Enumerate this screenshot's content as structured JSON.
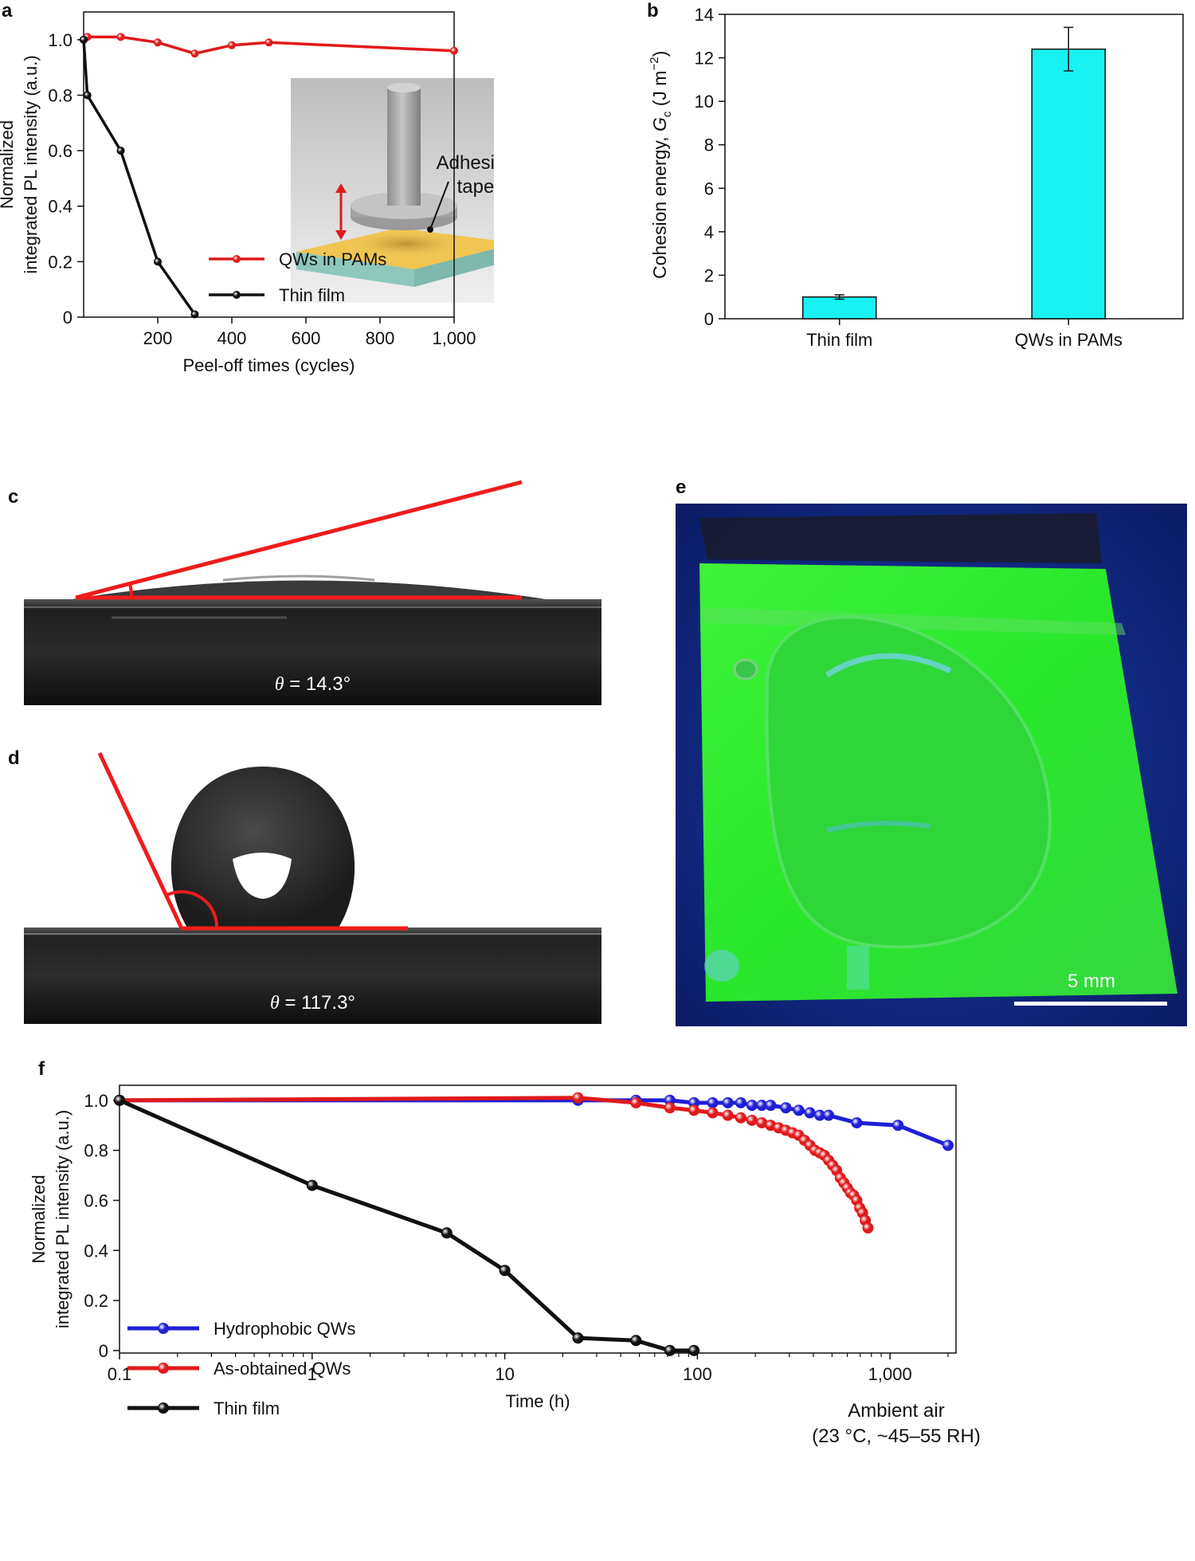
{
  "panel_labels": {
    "a": "a",
    "b": "b",
    "c": "c",
    "d": "d",
    "e": "e",
    "f": "f"
  },
  "panel_c": {
    "caption_symbol": "θ",
    "caption_value": " = 14.3°"
  },
  "panel_d": {
    "caption_symbol": "θ",
    "caption_value": " = 117.3°"
  },
  "panel_e": {
    "scale_bar": "5 mm"
  },
  "chart_data": [
    {
      "id": "a",
      "type": "line",
      "xlabel": "Peel-off times (cycles)",
      "ylabel_line1": "Normalized",
      "ylabel_line2": "integrated PL intensity (a.u.)",
      "xlim": [
        0,
        1000
      ],
      "ylim": [
        0,
        1.1
      ],
      "xticks": [
        {
          "v": 200,
          "label": "200"
        },
        {
          "v": 400,
          "label": "400"
        },
        {
          "v": 600,
          "label": "600"
        },
        {
          "v": 800,
          "label": "800"
        },
        {
          "v": 1000,
          "label": "1,000"
        }
      ],
      "yticks": [
        {
          "v": 0,
          "label": "0"
        },
        {
          "v": 0.2,
          "label": "0.2"
        },
        {
          "v": 0.4,
          "label": "0.4"
        },
        {
          "v": 0.6,
          "label": "0.6"
        },
        {
          "v": 0.8,
          "label": "0.8"
        },
        {
          "v": 1.0,
          "label": "1.0"
        }
      ],
      "series": [
        {
          "name": "QWs in PAMs",
          "color": "#e0191b",
          "x": [
            0,
            10,
            100,
            200,
            300,
            400,
            500,
            1000
          ],
          "y": [
            1.0,
            1.01,
            1.01,
            0.99,
            0.95,
            0.98,
            0.99,
            0.96
          ]
        },
        {
          "name": "Thin film",
          "color": "#111111",
          "x": [
            0,
            10,
            100,
            200,
            300
          ],
          "y": [
            1.0,
            0.8,
            0.6,
            0.2,
            0.01
          ]
        }
      ],
      "inset_label_line1": "Adhesive",
      "inset_label_line2": "tape"
    },
    {
      "id": "b",
      "type": "bar",
      "ylabel": "Cohesion energy, ",
      "ylabel_symbol": "G",
      "ylabel_sub": "c",
      "ylabel_unit": " (J m",
      "ylabel_sup": "−2",
      "ylabel_end": ")",
      "ylim": [
        0,
        14
      ],
      "yticks": [
        {
          "v": 0,
          "label": "0"
        },
        {
          "v": 2,
          "label": "2"
        },
        {
          "v": 4,
          "label": "4"
        },
        {
          "v": 6,
          "label": "6"
        },
        {
          "v": 8,
          "label": "8"
        },
        {
          "v": 10,
          "label": "10"
        },
        {
          "v": 12,
          "label": "12"
        },
        {
          "v": 14,
          "label": "14"
        }
      ],
      "categories": [
        "Thin film",
        "QWs in PAMs"
      ],
      "values": [
        1.0,
        12.4
      ],
      "errors": [
        0.1,
        1.0
      ],
      "bar_color": "#18f2f2"
    },
    {
      "id": "f",
      "type": "line",
      "xscale": "log",
      "xlabel": "Time (h)",
      "ylabel_line1": "Normalized",
      "ylabel_line2": "integrated PL intensity (a.u.)",
      "xlim": [
        0.1,
        2200
      ],
      "ylim": [
        -0.01,
        1.06
      ],
      "xticks": [
        {
          "v": 0.1,
          "label": "0.1"
        },
        {
          "v": 1,
          "label": "1"
        },
        {
          "v": 10,
          "label": "10"
        },
        {
          "v": 100,
          "label": "100"
        },
        {
          "v": 1000,
          "label": "1,000"
        }
      ],
      "yticks": [
        {
          "v": 0,
          "label": "0"
        },
        {
          "v": 0.2,
          "label": "0.2"
        },
        {
          "v": 0.4,
          "label": "0.4"
        },
        {
          "v": 0.6,
          "label": "0.6"
        },
        {
          "v": 0.8,
          "label": "0.8"
        },
        {
          "v": 1.0,
          "label": "1.0"
        }
      ],
      "annotation_line1": "Ambient air",
      "annotation_line2": "(23 °C, ~45–55 RH)",
      "series": [
        {
          "name": "Hydrophobic QWs",
          "color": "#1f1fd6",
          "x": [
            0.1,
            24,
            48,
            72,
            96,
            120,
            144,
            168,
            192,
            216,
            240,
            288,
            336,
            384,
            432,
            480,
            672,
            1100,
            2000
          ],
          "y": [
            1.0,
            1.0,
            1.0,
            1.0,
            0.99,
            0.99,
            0.99,
            0.99,
            0.98,
            0.98,
            0.98,
            0.97,
            0.96,
            0.95,
            0.94,
            0.94,
            0.91,
            0.9,
            0.82
          ]
        },
        {
          "name": "As-obtained QWs",
          "color": "#e0191b",
          "x": [
            0.1,
            24,
            48,
            72,
            96,
            120,
            144,
            168,
            192,
            216,
            240,
            264,
            288,
            312,
            336,
            360,
            384,
            408,
            432,
            456,
            480,
            504,
            528,
            552,
            576,
            600,
            624,
            648,
            672,
            696,
            720,
            744,
            768
          ],
          "y": [
            1.0,
            1.01,
            0.99,
            0.97,
            0.96,
            0.95,
            0.94,
            0.93,
            0.92,
            0.91,
            0.9,
            0.89,
            0.88,
            0.87,
            0.86,
            0.84,
            0.82,
            0.8,
            0.79,
            0.78,
            0.76,
            0.74,
            0.72,
            0.69,
            0.67,
            0.65,
            0.63,
            0.62,
            0.6,
            0.57,
            0.55,
            0.52,
            0.49
          ]
        },
        {
          "name": "Thin film",
          "color": "#111111",
          "x": [
            0.1,
            1,
            5,
            10,
            24,
            48,
            72,
            96
          ],
          "y": [
            1.0,
            0.66,
            0.47,
            0.32,
            0.05,
            0.04,
            0.0,
            0.0
          ]
        }
      ]
    }
  ]
}
